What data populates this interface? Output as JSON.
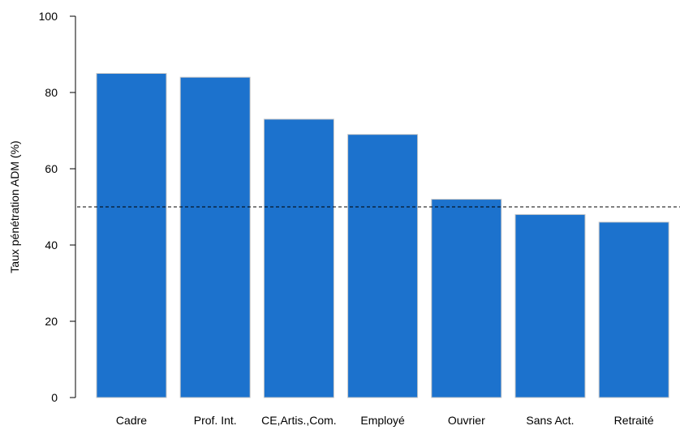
{
  "chart_data": {
    "type": "bar",
    "title": "",
    "xlabel": "",
    "ylabel": "Taux pénétration ADM (%)",
    "categories": [
      "Cadre",
      "Prof. Int.",
      "CE,Artis.,Com.",
      "Employé",
      "Ouvrier",
      "Sans Act.",
      "Retraité"
    ],
    "values": [
      85,
      84,
      73,
      69,
      52,
      48,
      46
    ],
    "ylim": [
      0,
      100
    ],
    "yticks": [
      0,
      20,
      40,
      60,
      80,
      100
    ],
    "reference_line": 50,
    "grid": false,
    "colors": {
      "bar": "#1c72cd",
      "bar_edge": "#c8c8c8",
      "reference_line": "#000000",
      "axis": "#000000"
    }
  }
}
